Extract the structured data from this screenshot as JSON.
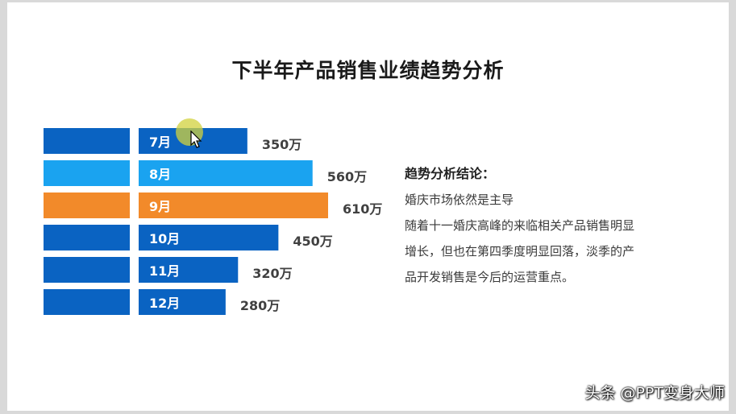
{
  "title": "下半年产品销售业绩趋势分析",
  "chart_data": {
    "type": "bar",
    "orientation": "horizontal",
    "categories": [
      "7月",
      "8月",
      "9月",
      "10月",
      "11月",
      "12月"
    ],
    "values": [
      350,
      560,
      610,
      450,
      320,
      280
    ],
    "value_labels": [
      "350万",
      "560万",
      "610万",
      "450万",
      "320万",
      "280万"
    ],
    "unit": "万",
    "highlight_index": 2,
    "colors": {
      "default": "#0a63c2",
      "alt": "#1aa3f0",
      "highlight": "#f28a2a",
      "alt_index": 1
    },
    "title": "下半年产品销售业绩趋势分析",
    "xlabel": "",
    "ylabel": "",
    "grid": false,
    "legend": "none"
  },
  "analysis": {
    "heading": "趋势分析结论：",
    "line1": "婚庆市场依然是主导",
    "body": "随着十一婚庆高峰的来临相关产品销售明显增长，但也在第四季度明显回落，淡季的产品开发销售是今后的运营重点。"
  },
  "watermark": "头条 @PPT变身大师"
}
